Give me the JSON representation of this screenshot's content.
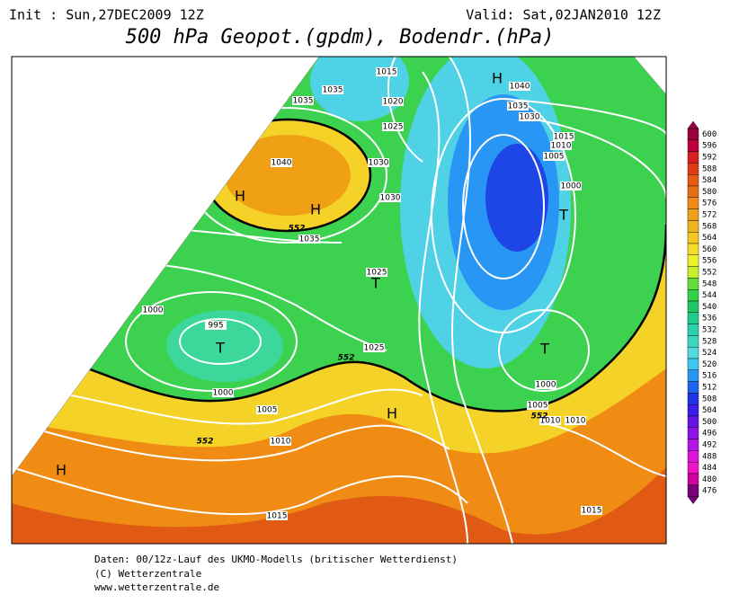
{
  "header": {
    "init": "Init : Sun,27DEC2009 12Z",
    "valid": "Valid: Sat,02JAN2010 12Z",
    "title": "500 hPa Geopot.(gpdm), Bodendr.(hPa)"
  },
  "colorbar": {
    "levels": [
      600,
      596,
      592,
      588,
      584,
      580,
      576,
      572,
      568,
      564,
      560,
      556,
      552,
      548,
      544,
      540,
      536,
      532,
      528,
      524,
      520,
      516,
      512,
      508,
      504,
      500,
      496,
      492,
      488,
      484,
      480,
      476
    ],
    "colors": [
      "#9b0040",
      "#c0003c",
      "#d81e1e",
      "#e03c14",
      "#e85a14",
      "#e86e14",
      "#f08c14",
      "#f0a014",
      "#f0b41e",
      "#f5c81e",
      "#f5dc28",
      "#f0f028",
      "#c8f028",
      "#64dc3c",
      "#32d24b",
      "#1ec864",
      "#1ecd8c",
      "#28d2aa",
      "#3cd7c3",
      "#50dce1",
      "#3cc8f0",
      "#2896f5",
      "#1e64f0",
      "#1e32e6",
      "#3c1ee6",
      "#6414e6",
      "#8c14e6",
      "#b414e6",
      "#dc14dc",
      "#f014c8",
      "#d200a0",
      "#780078"
    ]
  },
  "map": {
    "isobar_labels": [
      "1015",
      "1035",
      "1035",
      "1020",
      "1025",
      "1040",
      "1035",
      "1030",
      "1015",
      "1010",
      "1005",
      "1030",
      "1040",
      "1030",
      "1000",
      "1035",
      "1025",
      "1000",
      "995",
      "1025",
      "1000",
      "1005",
      "1005",
      "1000",
      "1010",
      "1010",
      "1010",
      "1015",
      "1015"
    ],
    "contour_labels": [
      "552",
      "552",
      "552",
      "552"
    ],
    "pressure_centers": [
      "H",
      "H",
      "H",
      "T",
      "T",
      "T",
      "T",
      "H",
      "H"
    ]
  },
  "footer": {
    "lines": [
      "Daten: 00/12z-Lauf des UKMO-Modells (britischer Wetterdienst)",
      "(C) Wetterzentrale",
      "www.wetterzentrale.de"
    ]
  }
}
